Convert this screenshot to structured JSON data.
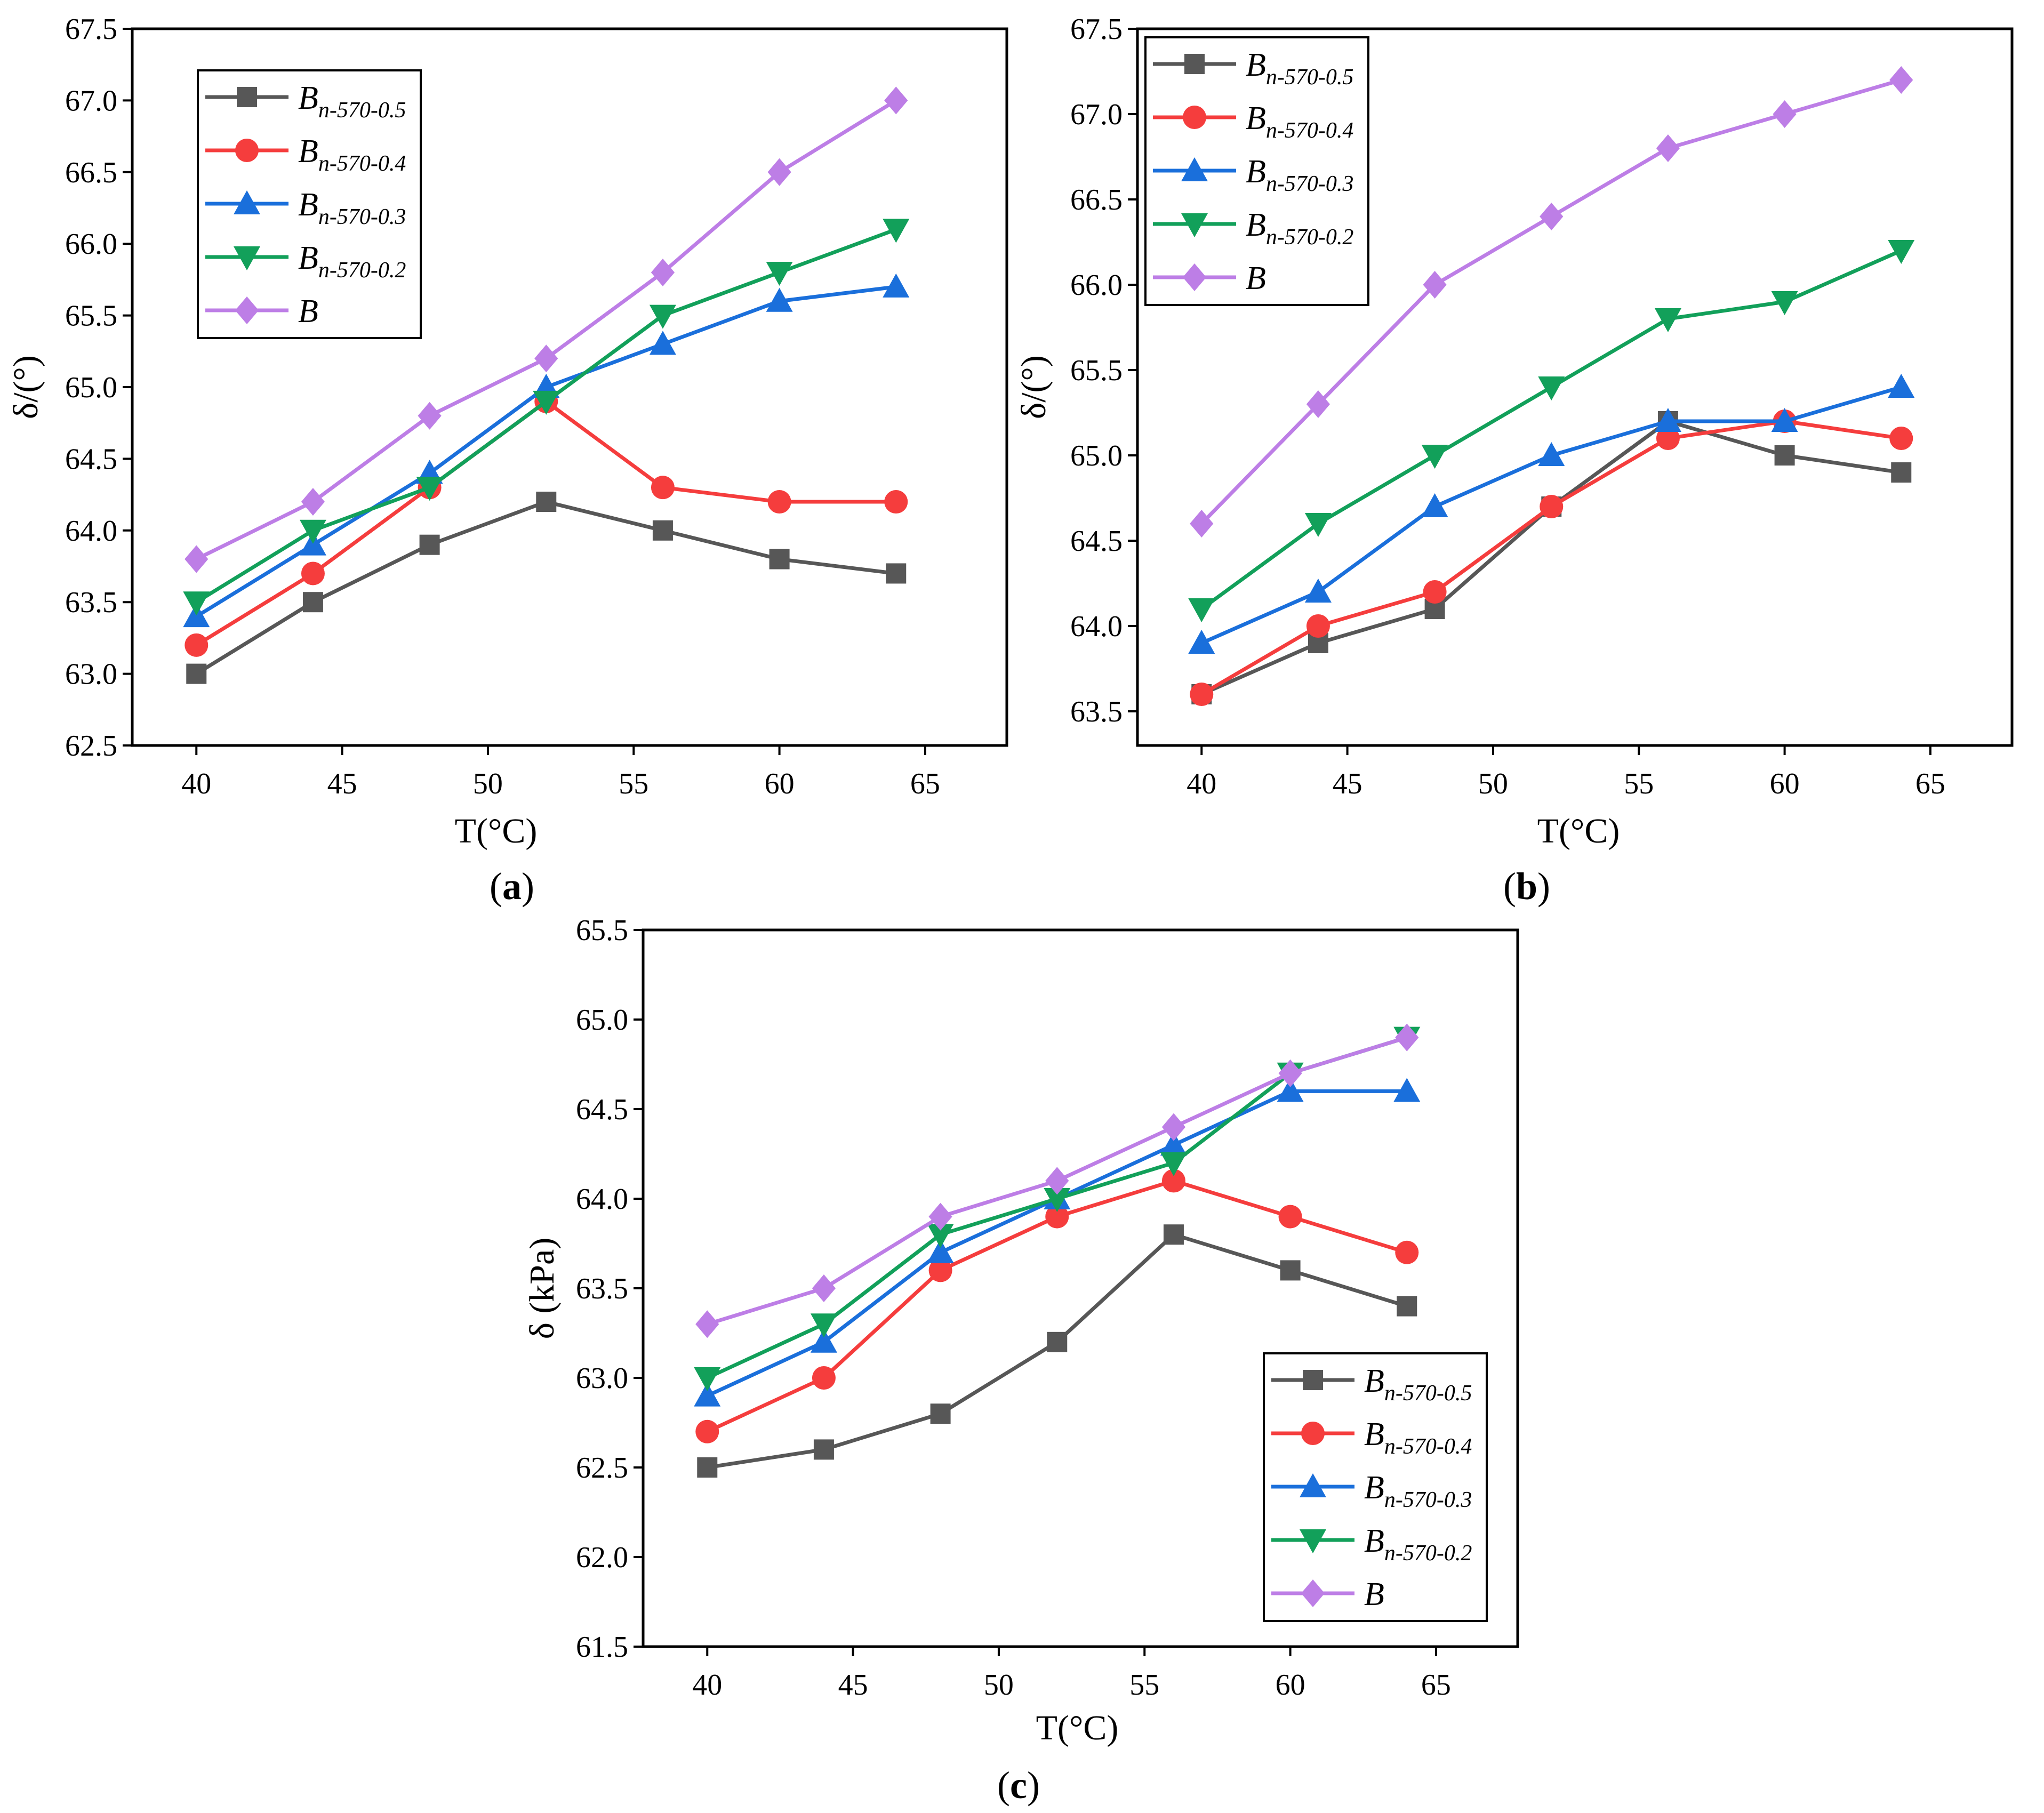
{
  "figure": {
    "panel_label_format": "(letter)"
  },
  "series_styles": [
    {
      "key": "Bn-570-0.5",
      "color": "#575757",
      "marker": "square"
    },
    {
      "key": "Bn-570-0.4",
      "color": "#f53d3d",
      "marker": "circle"
    },
    {
      "key": "Bn-570-0.3",
      "color": "#1a6fdb",
      "marker": "triangle-up"
    },
    {
      "key": "Bn-570-0.2",
      "color": "#12a05a",
      "marker": "triangle-down"
    },
    {
      "key": "B",
      "color": "#bd7ee6",
      "marker": "diamond"
    }
  ],
  "legend_labels": [
    {
      "base": "B",
      "sub": "n-570-0.5"
    },
    {
      "base": "B",
      "sub": "n-570-0.4"
    },
    {
      "base": "B",
      "sub": "n-570-0.3"
    },
    {
      "base": "B",
      "sub": "n-570-0.2"
    },
    {
      "base": "B",
      "sub": ""
    }
  ],
  "chart_data": [
    {
      "panel": "a",
      "type": "line",
      "xlabel": "T(°C)",
      "ylabel": "δ/(°)",
      "xlim": [
        37.8,
        67.8
      ],
      "ylim": [
        62.5,
        67.5
      ],
      "xticks": [
        40,
        45,
        50,
        55,
        60,
        65
      ],
      "yticks": [
        62.5,
        63.0,
        63.5,
        64.0,
        64.5,
        65.0,
        65.5,
        66.0,
        66.5,
        67.0,
        67.5
      ],
      "legend_position": "top-left",
      "x": [
        40,
        44,
        48,
        52,
        56,
        60,
        64
      ],
      "series": [
        {
          "name": "Bn-570-0.5",
          "values": [
            63.0,
            63.5,
            63.9,
            64.2,
            64.0,
            63.8,
            63.7
          ]
        },
        {
          "name": "Bn-570-0.4",
          "values": [
            63.2,
            63.7,
            64.3,
            64.9,
            64.3,
            64.2,
            64.2
          ]
        },
        {
          "name": "Bn-570-0.3",
          "values": [
            63.4,
            63.9,
            64.4,
            65.0,
            65.3,
            65.6,
            65.7
          ]
        },
        {
          "name": "Bn-570-0.2",
          "values": [
            63.5,
            64.0,
            64.3,
            64.9,
            65.5,
            65.8,
            66.1
          ]
        },
        {
          "name": "B",
          "values": [
            63.8,
            64.2,
            64.8,
            65.2,
            65.8,
            66.5,
            67.0
          ]
        }
      ]
    },
    {
      "panel": "b",
      "type": "line",
      "xlabel": "T(°C)",
      "ylabel": "δ/(°)",
      "xlim": [
        37.8,
        67.8
      ],
      "ylim": [
        63.3,
        67.5
      ],
      "xticks": [
        40,
        45,
        50,
        55,
        60,
        65
      ],
      "yticks": [
        63.5,
        64.0,
        64.5,
        65.0,
        65.5,
        66.0,
        66.5,
        67.0,
        67.5
      ],
      "legend_position": "top-left",
      "x": [
        40,
        44,
        48,
        52,
        56,
        60,
        64
      ],
      "series": [
        {
          "name": "Bn-570-0.5",
          "values": [
            63.6,
            63.9,
            64.1,
            64.7,
            65.2,
            65.0,
            64.9
          ]
        },
        {
          "name": "Bn-570-0.4",
          "values": [
            63.6,
            64.0,
            64.2,
            64.7,
            65.1,
            65.2,
            65.1
          ]
        },
        {
          "name": "Bn-570-0.3",
          "values": [
            63.9,
            64.2,
            64.7,
            65.0,
            65.2,
            65.2,
            65.4
          ]
        },
        {
          "name": "Bn-570-0.2",
          "values": [
            64.1,
            64.6,
            65.0,
            65.4,
            65.8,
            65.9,
            66.2
          ]
        },
        {
          "name": "B",
          "values": [
            64.6,
            65.3,
            66.0,
            66.4,
            66.8,
            67.0,
            67.2
          ]
        }
      ]
    },
    {
      "panel": "c",
      "type": "line",
      "xlabel": "T(°C)",
      "ylabel": "δ (kPa)",
      "xlim": [
        37.8,
        67.8
      ],
      "ylim": [
        61.5,
        65.5
      ],
      "xticks": [
        40,
        45,
        50,
        55,
        60,
        65
      ],
      "yticks": [
        61.5,
        62.0,
        62.5,
        63.0,
        63.5,
        64.0,
        64.5,
        65.0,
        65.5
      ],
      "legend_position": "bottom-right",
      "x": [
        40,
        44,
        48,
        52,
        56,
        60,
        64
      ],
      "series": [
        {
          "name": "Bn-570-0.5",
          "values": [
            62.5,
            62.6,
            62.8,
            63.2,
            63.8,
            63.6,
            63.4
          ]
        },
        {
          "name": "Bn-570-0.4",
          "values": [
            62.7,
            63.0,
            63.6,
            63.9,
            64.1,
            63.9,
            63.7
          ]
        },
        {
          "name": "Bn-570-0.3",
          "values": [
            62.9,
            63.2,
            63.7,
            64.0,
            64.3,
            64.6,
            64.6
          ]
        },
        {
          "name": "Bn-570-0.2",
          "values": [
            63.0,
            63.3,
            63.8,
            64.0,
            64.2,
            64.7,
            64.9
          ]
        },
        {
          "name": "B",
          "values": [
            63.3,
            63.5,
            63.9,
            64.1,
            64.4,
            64.7,
            64.9
          ]
        }
      ]
    }
  ]
}
